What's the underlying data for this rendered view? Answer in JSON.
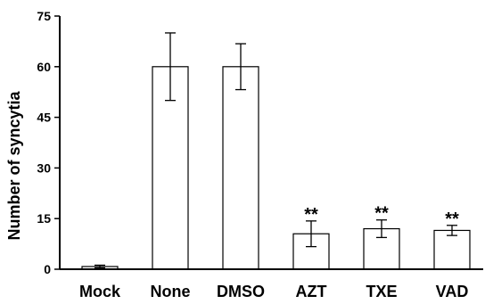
{
  "chart_data": {
    "type": "bar",
    "title": "",
    "xlabel": "",
    "ylabel": "Number of syncytia",
    "ylim": [
      0,
      75
    ],
    "yticks": [
      0,
      15,
      30,
      45,
      60,
      75
    ],
    "grid": false,
    "categories": [
      "Mock",
      "None",
      "DMSO",
      "AZT",
      "TXE",
      "VAD"
    ],
    "values": [
      0.8,
      60,
      60,
      10.5,
      12,
      11.5
    ],
    "errors": [
      0.4,
      10,
      6.8,
      3.8,
      2.6,
      1.5
    ],
    "annotations": [
      "",
      "",
      "",
      "**",
      "**",
      "**"
    ]
  }
}
